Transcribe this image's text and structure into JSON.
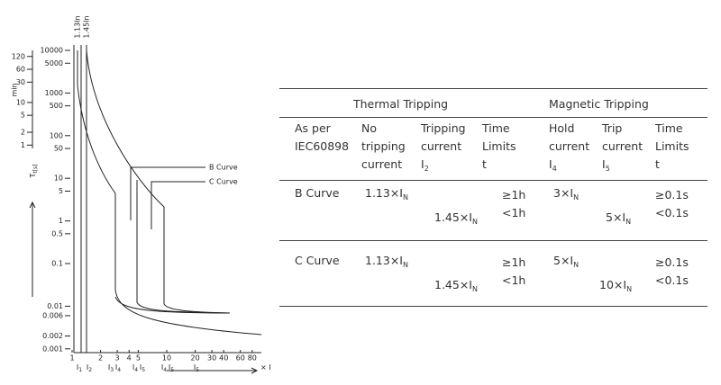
{
  "figure": {
    "top_labels": [
      "1.13In",
      "1.45In"
    ],
    "y_label_min": "min",
    "y_label_s": {
      "text": "T",
      "sub": "t[s]"
    },
    "y_ticks_s": [
      "10000",
      "5000",
      "1000",
      "500",
      "100",
      "50",
      "10",
      "5",
      "1",
      "0.5",
      "0.1",
      "0.01",
      "0.006",
      "0.002",
      "0.001"
    ],
    "y_ticks_min": [
      "120",
      "60",
      "30",
      "10",
      "5",
      "2",
      "1"
    ],
    "x_ticks": [
      "1",
      "2",
      "3",
      "4",
      "5",
      "10",
      "20",
      "30",
      "40",
      "60",
      "80"
    ],
    "x_sub_labels": [
      {
        "text": "I",
        "sub": "1"
      },
      {
        "text": "I",
        "sub": "2"
      },
      {
        "text": "I",
        "sub": "3"
      },
      {
        "text": "I",
        "sub": "4"
      },
      {
        "text": "I",
        "sub": "4"
      },
      {
        "text": "I",
        "sub": "5"
      },
      {
        "text": "I",
        "sub": "4"
      },
      {
        "text": "I",
        "sub": "5"
      },
      {
        "text": "I",
        "sub": "5"
      }
    ],
    "x_unit": {
      "text": "× I",
      "sub": "n"
    },
    "curve_labels": [
      "B Curve",
      "C Curve"
    ]
  },
  "table": {
    "groups": [
      "Thermal Tripping",
      "Magnetic Tripping"
    ],
    "headers": [
      [
        "As per",
        "IEC60898"
      ],
      [
        "No",
        "tripping",
        "current"
      ],
      [
        "Tripping",
        "current",
        {
          "text": "I",
          "sub": "2"
        }
      ],
      [
        "Time",
        "Limits",
        "t"
      ],
      [
        "Hold",
        "current",
        {
          "text": "I",
          "sub": "4"
        }
      ],
      [
        "Trip",
        "current",
        {
          "text": "I",
          "sub": "5"
        }
      ],
      [
        "Time",
        "Limits",
        "t"
      ]
    ],
    "rows": [
      {
        "name": "B Curve",
        "no_trip": {
          "text": "1.13×I",
          "sub": "N"
        },
        "trip": {
          "text": "1.45×I",
          "sub": "N"
        },
        "time": [
          "≥1h",
          "<1h"
        ],
        "hold": {
          "text": "3×I",
          "sub": "N"
        },
        "trip_m": {
          "text": "5×I",
          "sub": "N"
        },
        "time_m": [
          "≥0.1s",
          "<0.1s"
        ]
      },
      {
        "name": "C Curve",
        "no_trip": {
          "text": "1.13×I",
          "sub": "N"
        },
        "trip": {
          "text": "1.45×I",
          "sub": "N"
        },
        "time": [
          "≥1h",
          "<1h"
        ],
        "hold": {
          "text": "5×I",
          "sub": "N"
        },
        "trip_m": {
          "text": "10×I",
          "sub": "N"
        },
        "time_m": [
          "≥0.1s",
          "<0.1s"
        ]
      }
    ]
  }
}
